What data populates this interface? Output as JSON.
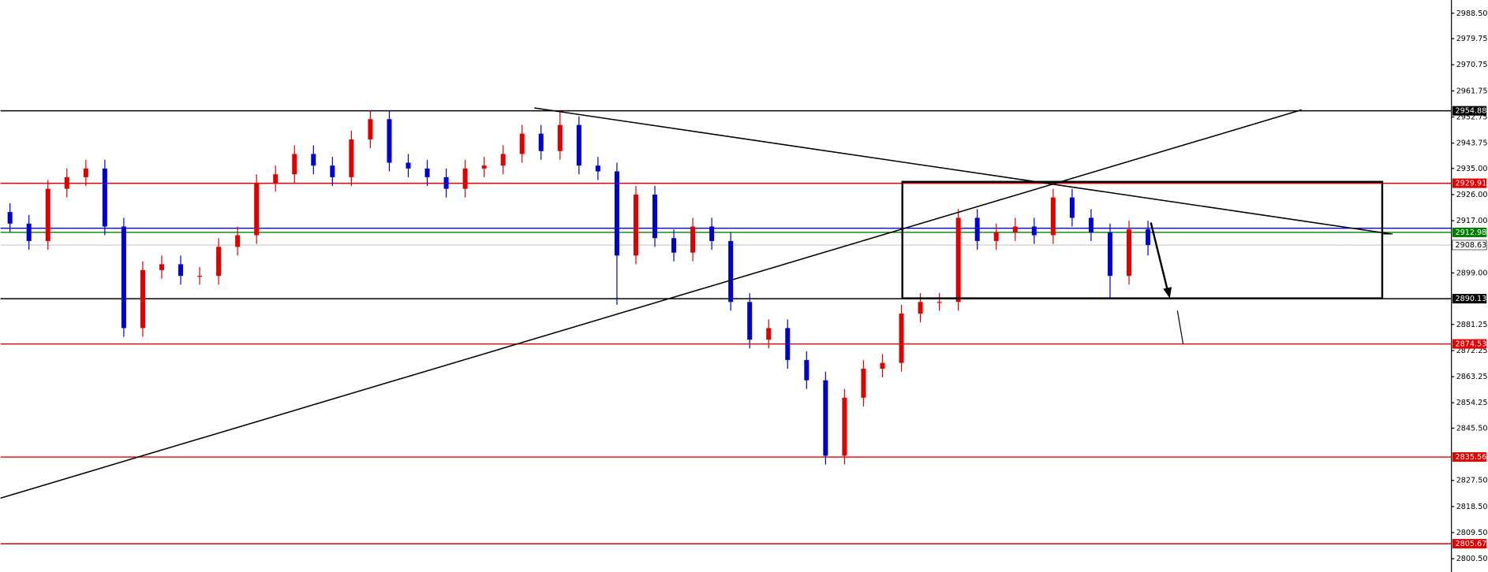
{
  "chart_data": {
    "type": "candlestick",
    "up_color": "#e00000",
    "down_color": "#0000d0",
    "open": [
      2920,
      2916,
      2910,
      2928,
      2932,
      2935,
      2915,
      2880,
      2900,
      2902,
      2898,
      2898,
      2908,
      2912,
      2930,
      2933,
      2940,
      2936,
      2932,
      2945,
      2952,
      2937,
      2935,
      2932,
      2928,
      2935,
      2936,
      2940,
      2947,
      2941,
      2950,
      2936,
      2934,
      2905,
      2926,
      2911,
      2906,
      2915,
      2910,
      2889,
      2876,
      2880,
      2869,
      2862,
      2836,
      2856,
      2866,
      2868,
      2885,
      2889,
      2889,
      2918,
      2910,
      2913,
      2915,
      2912,
      2925,
      2918,
      2913,
      2898,
      2914
    ],
    "high": [
      2923,
      2919,
      2931,
      2935,
      2938,
      2938,
      2918,
      2903,
      2905,
      2905,
      2901,
      2911,
      2915,
      2933,
      2936,
      2943,
      2943,
      2939,
      2948,
      2955,
      2955,
      2940,
      2938,
      2935,
      2938,
      2939,
      2943,
      2950,
      2950,
      2955,
      2953,
      2939,
      2937,
      2929,
      2929,
      2914,
      2918,
      2918,
      2913,
      2892,
      2883,
      2883,
      2872,
      2865,
      2859,
      2869,
      2871,
      2888,
      2892,
      2892,
      2921,
      2921,
      2916,
      2918,
      2918,
      2928,
      2928,
      2921,
      2916,
      2917,
      2917
    ],
    "low": [
      2913,
      2907,
      2907,
      2925,
      2929,
      2912,
      2877,
      2877,
      2897,
      2895,
      2895,
      2895,
      2905,
      2909,
      2927,
      2930,
      2933,
      2929,
      2929,
      2942,
      2934,
      2932,
      2929,
      2925,
      2925,
      2932,
      2933,
      2937,
      2938,
      2938,
      2933,
      2931,
      2888,
      2902,
      2908,
      2903,
      2903,
      2907,
      2886,
      2873,
      2873,
      2866,
      2859,
      2833,
      2833,
      2853,
      2863,
      2865,
      2882,
      2886,
      2886,
      2907,
      2907,
      2910,
      2909,
      2909,
      2915,
      2910,
      2890,
      2895,
      2905
    ],
    "close": [
      2916,
      2910,
      2928,
      2932,
      2935,
      2915,
      2880,
      2900,
      2902,
      2898,
      2898,
      2908,
      2912,
      2930,
      2933,
      2940,
      2936,
      2932,
      2945,
      2952,
      2937,
      2935,
      2932,
      2928,
      2935,
      2936,
      2940,
      2947,
      2941,
      2950,
      2936,
      2934,
      2905,
      2926,
      2911,
      2906,
      2915,
      2910,
      2889,
      2876,
      2880,
      2869,
      2862,
      2836,
      2856,
      2866,
      2868,
      2885,
      2889,
      2889,
      2918,
      2910,
      2913,
      2915,
      2912,
      2925,
      2918,
      2913,
      2898,
      2914,
      2908.63
    ],
    "ylim": [
      2800.5,
      2988.5
    ],
    "yticks": [
      {
        "value": 2988.5,
        "label": "2988.50"
      },
      2979.75,
      2970.75,
      2961.75,
      2952.75,
      2943.75,
      {
        "value": 2935,
        "label": "2935.00"
      },
      {
        "value": 2926,
        "label": "2926.00"
      },
      {
        "value": 2917,
        "label": "2917.00"
      },
      {
        "value": 2899,
        "label": "2899.00"
      },
      2881.25,
      2872.25,
      2863.25,
      2854.25,
      {
        "value": 2845.5,
        "label": "2845.50"
      },
      {
        "value": 2827.5,
        "label": "2827.50"
      },
      {
        "value": 2818.5,
        "label": "2818.50"
      },
      {
        "value": 2809.5,
        "label": "2809.50"
      },
      {
        "value": 2800.5,
        "label": "2800.50"
      }
    ],
    "levels": [
      {
        "value": 2954.88,
        "color": "#000000"
      },
      {
        "value": 2929.91,
        "color": "#e00000"
      },
      {
        "value": 2914.4,
        "color": "#0000ff",
        "show_label": false
      },
      {
        "value": 2912.98,
        "color": "#008000"
      },
      {
        "value": 2908.63,
        "color": "#c0c0c0"
      },
      {
        "value": 2890.13,
        "color": "#000000"
      },
      {
        "value": 2874.53,
        "color": "#e00000"
      },
      {
        "value": 2835.56,
        "color": "#e00000"
      },
      {
        "value": 2805.67,
        "color": "#e00000"
      }
    ]
  }
}
